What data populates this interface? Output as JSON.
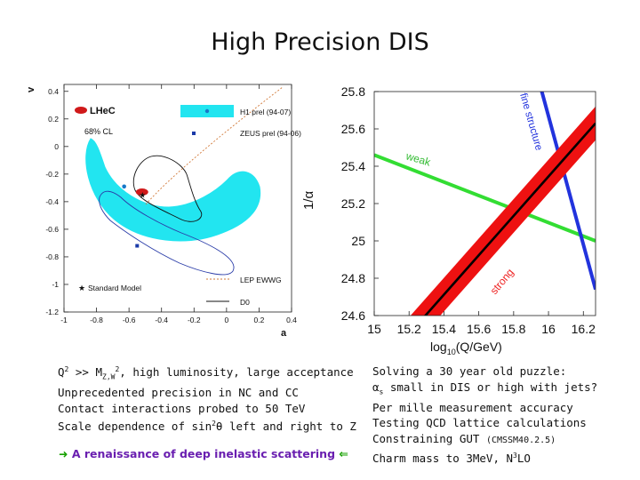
{
  "slide": {
    "title": "High Precision DIS"
  },
  "left_plot": {
    "labels": {
      "y_axis": "v_d",
      "x_axis": "a_d",
      "lhec": "LHeC",
      "cl": "68% CL",
      "h1": "H1 prel (94-07)",
      "zeus": "ZEUS prel (94-06)",
      "lep": "LEP EWWG",
      "sm": "Standard Model",
      "d0": "D0"
    },
    "colors": {
      "band": "#22e5f0",
      "h1": "#1878c8",
      "zeus": "#1a3aa8",
      "lhec": "#d0191a"
    }
  },
  "chart_data": [
    {
      "type": "scatter",
      "title": "",
      "xlabel": "a_d",
      "ylabel": "v_d",
      "xlim": [
        -1.0,
        0.4
      ],
      "ylim": [
        -1.2,
        0.45
      ],
      "x_ticks": [
        "-1",
        "-0.8",
        "-0.6",
        "-0.4",
        "-0.2",
        "0",
        "0.2",
        "0.4"
      ],
      "y_ticks": [
        "0.4",
        "0.2",
        "0",
        "-0.2",
        "-0.4",
        "-0.6",
        "-0.8",
        "-1",
        "-1.2"
      ],
      "series": [
        {
          "name": "LHeC",
          "x": [
            -0.52
          ],
          "y": [
            -0.33
          ]
        },
        {
          "name": "H1 prel (94-07)",
          "x": [
            -0.63
          ],
          "y": [
            -0.29
          ]
        },
        {
          "name": "ZEUS prel (94-06)",
          "x": [
            -0.55
          ],
          "y": [
            -0.72
          ]
        },
        {
          "name": "Standard Model",
          "x": [
            -0.52
          ],
          "y": [
            -0.35
          ]
        }
      ]
    },
    {
      "type": "line",
      "title": "",
      "xlabel": "log10(Q/GeV)",
      "ylabel": "1/α",
      "xlim": [
        15.0,
        16.27
      ],
      "ylim": [
        24.6,
        25.8
      ],
      "x_ticks": [
        "15",
        "15.2",
        "15.4",
        "15.6",
        "15.8",
        "16",
        "16.2"
      ],
      "y_ticks": [
        "25.8",
        "25.6",
        "25.4",
        "25.2",
        "25",
        "24.8",
        "24.6"
      ],
      "series": [
        {
          "name": "weak",
          "color": "#33dd33",
          "x": [
            15.0,
            16.27
          ],
          "y": [
            25.46,
            25.0
          ]
        },
        {
          "name": "fine structure",
          "color": "#2233dd",
          "x": [
            15.95,
            16.27
          ],
          "y": [
            25.84,
            24.74
          ]
        },
        {
          "name": "strong",
          "color": "#000000",
          "band_color": "#ee1111",
          "band_halfwidth": 0.09,
          "x": [
            15.18,
            16.27
          ],
          "y": [
            24.48,
            25.63
          ]
        }
      ]
    }
  ],
  "left_text": {
    "line1": "Q² >> M²Z,W, high luminosity, large acceptance",
    "line1_a": "Q",
    "line1_b": ">> M",
    "line1_c": "Z,W",
    "line1_d": ", high luminosity, large acceptance",
    "line2": "Unprecedented precision in NC and CC",
    "line3": "Contact interactions probed to 50 TeV",
    "line4_a": "Scale dependence of sin",
    "line4_b": "θ left and right to Z",
    "tagline": "A renaissance of deep inelastic scattering"
  },
  "right_text": {
    "line1": "Solving a 30 year old puzzle:",
    "line2_a": "α",
    "line2_b": "s",
    "line2_c": " small in DIS or high with jets?",
    "line3": "Per mille measurement accuracy",
    "line4": "Testing QCD lattice calculations",
    "line5_a": "Constraining GUT ",
    "line5_b": "(CMSSM40.2.5)",
    "line6_a": "Charm mass to 3MeV, N",
    "line6_b": "3",
    "line6_c": "LO"
  }
}
